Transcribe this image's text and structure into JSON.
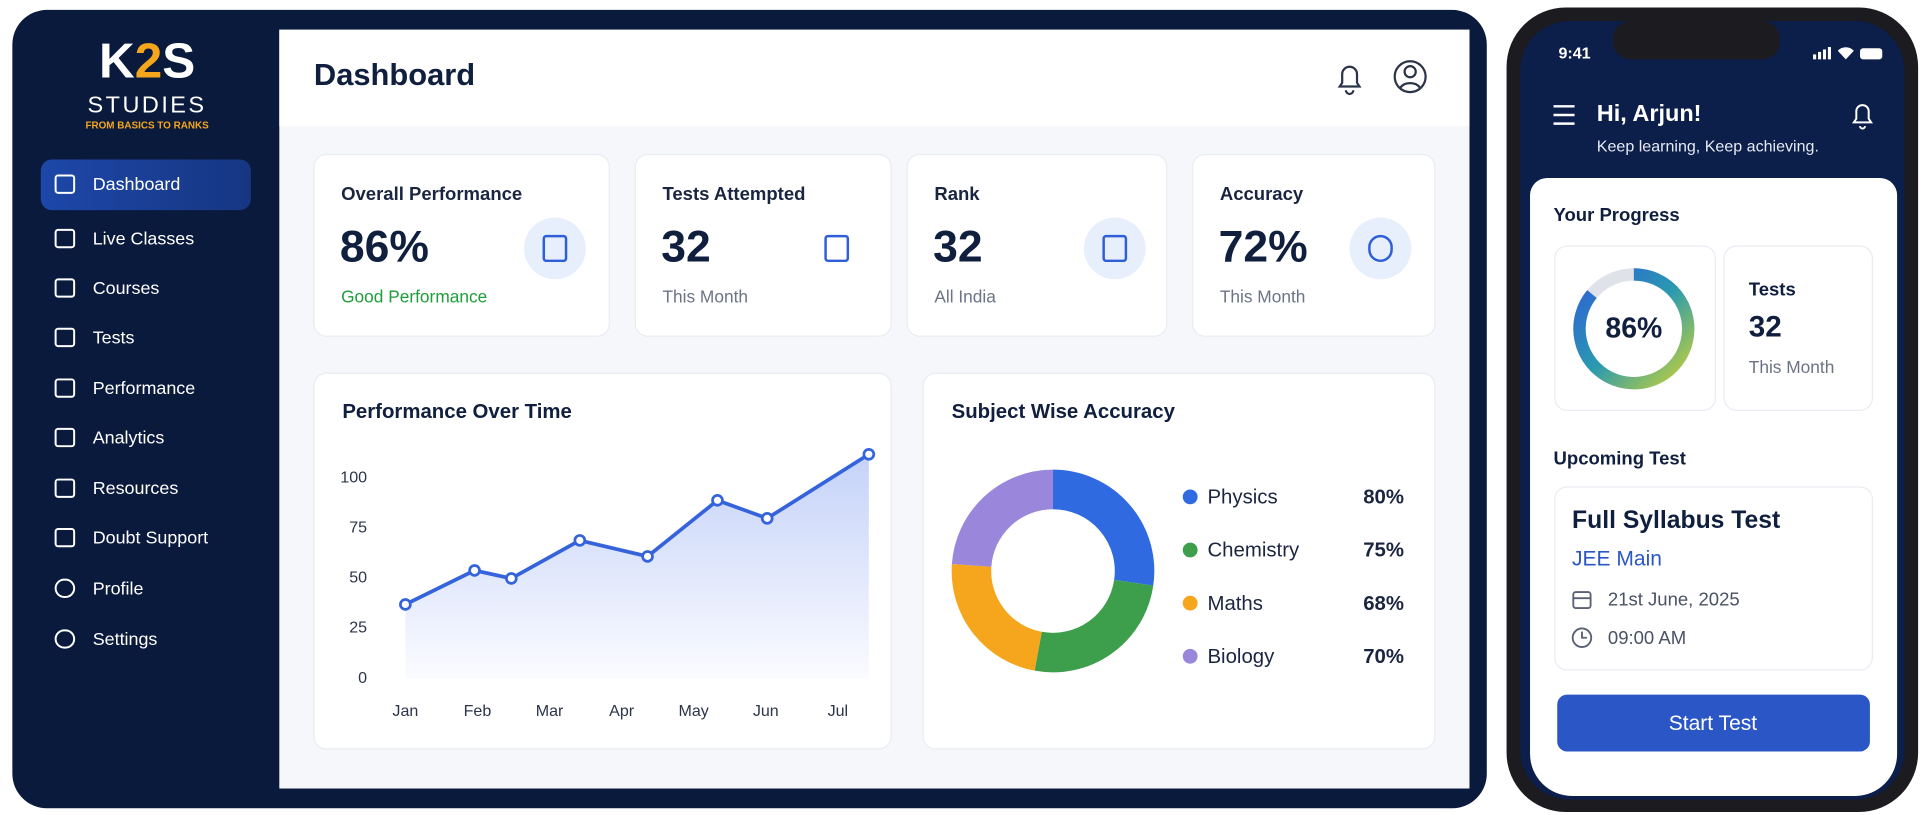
{
  "sidebar": {
    "logo": {
      "k": "K",
      "two": "2",
      "s": "S",
      "studies": "STUDIES",
      "tagline": "FROM BASICS TO RANKS"
    },
    "nav": [
      "Dashboard",
      "Live Classes",
      "Courses",
      "Tests",
      "Performance",
      "Analytics",
      "Resources",
      "Doubt Support",
      "Profile",
      "Settings"
    ]
  },
  "header": {
    "title": "Dashboard"
  },
  "stats": [
    {
      "title": "Overall Performance",
      "value": "86%",
      "note": "Good Performance"
    },
    {
      "title": "Tests Attempted",
      "value": "32",
      "note": "This Month"
    },
    {
      "title": "Rank",
      "value": "32",
      "note": "All India"
    },
    {
      "title": "Accuracy",
      "value": "72%",
      "note": "This Month"
    }
  ],
  "chart_data": [
    {
      "type": "line",
      "title": "Performance Over Time",
      "color": "#3563dc",
      "x": [
        0,
        0.96,
        1.47,
        2.42,
        3.36,
        4.33,
        5.02,
        6.43
      ],
      "values": [
        37,
        54,
        50,
        69,
        61,
        89,
        80,
        112
      ],
      "xlim": [
        0,
        6.43
      ],
      "xticks": [
        {
          "value": 0,
          "label": "Jan"
        },
        {
          "value": 1,
          "label": "Feb"
        },
        {
          "value": 2,
          "label": "Mar"
        },
        {
          "value": 3,
          "label": "Apr"
        },
        {
          "value": 4,
          "label": "May"
        },
        {
          "value": 5,
          "label": "Jun"
        },
        {
          "value": 6,
          "label": "Jul"
        }
      ],
      "ylim": [
        0,
        115
      ],
      "yticks": [
        0,
        25,
        50,
        75,
        100
      ],
      "grid": false
    },
    {
      "type": "pie",
      "title": "Subject Wise Accuracy",
      "categories": [
        "Physics",
        "Chemistry",
        "Maths",
        "Biology"
      ],
      "values": [
        80,
        75,
        68,
        70
      ],
      "value_labels": [
        "80%",
        "75%",
        "68%",
        "70%"
      ],
      "colors": [
        "#2f6ae0",
        "#3d9e4c",
        "#f5a61c",
        "#9a87dc"
      ]
    }
  ],
  "mobile": {
    "time": "9:41",
    "greeting": "Hi, Arjun!",
    "subtitle": "Keep learning, Keep achieving.",
    "progress_title": "Your Progress",
    "progress": {
      "value": 86,
      "label": "86%"
    },
    "tests": {
      "title": "Tests",
      "value": "32",
      "note": "This Month"
    },
    "upcoming_title": "Upcoming Test",
    "upcoming": {
      "name": "Full Syllabus Test",
      "exam": "JEE Main",
      "date": "21st June, 2025",
      "time": "09:00 AM"
    },
    "button": "Start Test"
  }
}
